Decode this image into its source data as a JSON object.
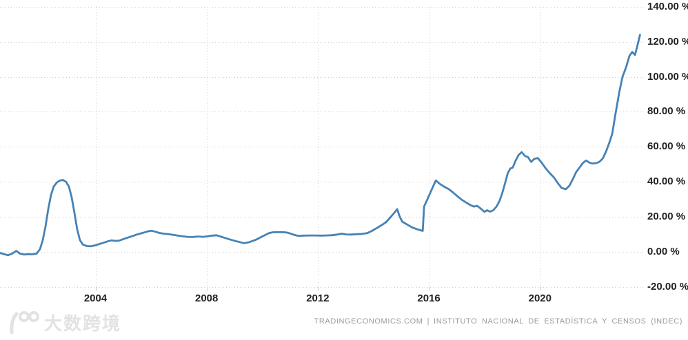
{
  "attribution": {
    "source_site": "TRADINGECONOMICS.COM",
    "separator": "|",
    "source_org": "INSTITUTO NACIONAL DE ESTADÍSTICA Y CENSOS (INDEC)"
  },
  "watermark": {
    "text": "大数跨境",
    "logo": "dashu-100-logo"
  },
  "colors": {
    "line": "#4682b4",
    "grid": "#cbcbcb",
    "tick_text": "#222222",
    "attribution_text": "#9a9a9a",
    "watermark": "#e2e2e2",
    "background": "#ffffff"
  },
  "chart_data": {
    "type": "line",
    "title": "",
    "unit": "%",
    "grid": "dotted",
    "legend": "none",
    "xlim": [
      2000.45,
      2023.77
    ],
    "ylim": [
      -20,
      140
    ],
    "x_ticks": [
      {
        "value": 2004,
        "label": "2004"
      },
      {
        "value": 2008,
        "label": "2008"
      },
      {
        "value": 2012,
        "label": "2012"
      },
      {
        "value": 2016,
        "label": "2016"
      },
      {
        "value": 2020,
        "label": "2020"
      }
    ],
    "y_ticks": [
      {
        "value": 140,
        "label": "140.00 %"
      },
      {
        "value": 120,
        "label": "120.00 %"
      },
      {
        "value": 100,
        "label": "100.00 %"
      },
      {
        "value": 80,
        "label": "80.00 %"
      },
      {
        "value": 60,
        "label": "60.00 %"
      },
      {
        "value": 40,
        "label": "40.00 %"
      },
      {
        "value": 20,
        "label": "20.00 %"
      },
      {
        "value": 0,
        "label": "0.00 %"
      },
      {
        "value": -20,
        "label": "-20.00 %"
      }
    ],
    "series": [
      {
        "name": "inflation-rate-yoy-percent",
        "color": "#4682b4",
        "points": [
          [
            2000.56,
            -0.6
          ],
          [
            2000.7,
            -1.2
          ],
          [
            2000.85,
            -1.9
          ],
          [
            2001.0,
            -1.0
          ],
          [
            2001.15,
            0.6
          ],
          [
            2001.28,
            -1.0
          ],
          [
            2001.42,
            -1.5
          ],
          [
            2001.58,
            -1.3
          ],
          [
            2001.72,
            -1.4
          ],
          [
            2001.88,
            -1.0
          ],
          [
            2002.0,
            1.5
          ],
          [
            2002.1,
            6.5
          ],
          [
            2002.2,
            14.5
          ],
          [
            2002.3,
            24.5
          ],
          [
            2002.4,
            32.5
          ],
          [
            2002.5,
            37.5
          ],
          [
            2002.62,
            39.8
          ],
          [
            2002.74,
            40.9
          ],
          [
            2002.84,
            41.0
          ],
          [
            2002.94,
            40.0
          ],
          [
            2003.04,
            37.5
          ],
          [
            2003.14,
            31.5
          ],
          [
            2003.24,
            22.5
          ],
          [
            2003.34,
            13.0
          ],
          [
            2003.44,
            6.8
          ],
          [
            2003.54,
            4.3
          ],
          [
            2003.68,
            3.4
          ],
          [
            2003.82,
            3.2
          ],
          [
            2003.96,
            3.6
          ],
          [
            2004.12,
            4.4
          ],
          [
            2004.28,
            5.2
          ],
          [
            2004.44,
            6.0
          ],
          [
            2004.58,
            6.6
          ],
          [
            2004.72,
            6.3
          ],
          [
            2004.86,
            6.5
          ],
          [
            2005.0,
            7.3
          ],
          [
            2005.15,
            8.1
          ],
          [
            2005.3,
            8.9
          ],
          [
            2005.45,
            9.7
          ],
          [
            2005.6,
            10.4
          ],
          [
            2005.75,
            11.1
          ],
          [
            2005.9,
            11.8
          ],
          [
            2006.02,
            12.1
          ],
          [
            2006.16,
            11.5
          ],
          [
            2006.3,
            10.8
          ],
          [
            2006.46,
            10.4
          ],
          [
            2006.62,
            10.2
          ],
          [
            2006.78,
            9.8
          ],
          [
            2006.94,
            9.4
          ],
          [
            2007.1,
            9.0
          ],
          [
            2007.3,
            8.6
          ],
          [
            2007.5,
            8.5
          ],
          [
            2007.68,
            8.8
          ],
          [
            2007.86,
            8.6
          ],
          [
            2008.04,
            8.9
          ],
          [
            2008.2,
            9.3
          ],
          [
            2008.36,
            9.5
          ],
          [
            2008.52,
            8.7
          ],
          [
            2008.68,
            7.9
          ],
          [
            2008.86,
            7.0
          ],
          [
            2009.04,
            6.2
          ],
          [
            2009.2,
            5.6
          ],
          [
            2009.34,
            5.0
          ],
          [
            2009.5,
            5.4
          ],
          [
            2009.65,
            6.2
          ],
          [
            2009.8,
            7.1
          ],
          [
            2009.95,
            8.4
          ],
          [
            2010.1,
            9.6
          ],
          [
            2010.24,
            10.7
          ],
          [
            2010.38,
            11.2
          ],
          [
            2010.55,
            11.3
          ],
          [
            2010.72,
            11.3
          ],
          [
            2010.88,
            11.1
          ],
          [
            2011.02,
            10.5
          ],
          [
            2011.15,
            9.7
          ],
          [
            2011.3,
            9.2
          ],
          [
            2011.5,
            9.3
          ],
          [
            2011.7,
            9.4
          ],
          [
            2011.9,
            9.4
          ],
          [
            2012.1,
            9.3
          ],
          [
            2012.3,
            9.4
          ],
          [
            2012.5,
            9.5
          ],
          [
            2012.7,
            9.9
          ],
          [
            2012.86,
            10.4
          ],
          [
            2013.02,
            10.0
          ],
          [
            2013.2,
            9.9
          ],
          [
            2013.4,
            10.1
          ],
          [
            2013.6,
            10.3
          ],
          [
            2013.78,
            10.7
          ],
          [
            2013.95,
            12.0
          ],
          [
            2014.08,
            13.2
          ],
          [
            2014.2,
            14.3
          ],
          [
            2014.33,
            15.6
          ],
          [
            2014.46,
            17.0
          ],
          [
            2014.6,
            19.5
          ],
          [
            2014.74,
            22.0
          ],
          [
            2014.86,
            24.4
          ],
          [
            2014.94,
            20.5
          ],
          [
            2015.04,
            17.3
          ],
          [
            2015.2,
            15.8
          ],
          [
            2015.4,
            14.0
          ],
          [
            2015.6,
            12.8
          ],
          [
            2015.78,
            12.0
          ],
          [
            2015.83,
            26.0
          ],
          [
            2015.96,
            30.5
          ],
          [
            2016.1,
            35.5
          ],
          [
            2016.25,
            40.8
          ],
          [
            2016.4,
            38.8
          ],
          [
            2016.56,
            37.2
          ],
          [
            2016.72,
            35.8
          ],
          [
            2016.88,
            33.8
          ],
          [
            2017.04,
            31.6
          ],
          [
            2017.2,
            29.6
          ],
          [
            2017.35,
            28.1
          ],
          [
            2017.5,
            26.7
          ],
          [
            2017.62,
            25.9
          ],
          [
            2017.74,
            26.3
          ],
          [
            2017.86,
            24.8
          ],
          [
            2018.0,
            22.9
          ],
          [
            2018.1,
            23.8
          ],
          [
            2018.2,
            23.0
          ],
          [
            2018.32,
            23.8
          ],
          [
            2018.44,
            26.0
          ],
          [
            2018.54,
            29.0
          ],
          [
            2018.64,
            33.5
          ],
          [
            2018.74,
            39.0
          ],
          [
            2018.84,
            45.0
          ],
          [
            2018.93,
            47.6
          ],
          [
            2019.02,
            48.2
          ],
          [
            2019.12,
            52.0
          ],
          [
            2019.23,
            55.4
          ],
          [
            2019.34,
            57.0
          ],
          [
            2019.46,
            54.8
          ],
          [
            2019.57,
            54.1
          ],
          [
            2019.68,
            51.4
          ],
          [
            2019.8,
            53.2
          ],
          [
            2019.92,
            53.6
          ],
          [
            2020.06,
            51.0
          ],
          [
            2020.2,
            47.8
          ],
          [
            2020.35,
            45.0
          ],
          [
            2020.5,
            42.6
          ],
          [
            2020.64,
            39.3
          ],
          [
            2020.78,
            36.5
          ],
          [
            2020.93,
            35.8
          ],
          [
            2021.06,
            37.8
          ],
          [
            2021.18,
            41.5
          ],
          [
            2021.3,
            45.5
          ],
          [
            2021.43,
            48.3
          ],
          [
            2021.55,
            50.9
          ],
          [
            2021.66,
            52.2
          ],
          [
            2021.78,
            51.0
          ],
          [
            2021.9,
            50.5
          ],
          [
            2022.02,
            50.7
          ],
          [
            2022.14,
            51.4
          ],
          [
            2022.26,
            53.4
          ],
          [
            2022.38,
            57.4
          ],
          [
            2022.5,
            62.5
          ],
          [
            2022.6,
            67.5
          ],
          [
            2022.72,
            79.0
          ],
          [
            2022.85,
            91.0
          ],
          [
            2022.97,
            100.0
          ],
          [
            2023.1,
            105.5
          ],
          [
            2023.22,
            112.0
          ],
          [
            2023.32,
            114.2
          ],
          [
            2023.42,
            112.5
          ],
          [
            2023.5,
            117.3
          ],
          [
            2023.6,
            124.0
          ]
        ]
      }
    ]
  }
}
